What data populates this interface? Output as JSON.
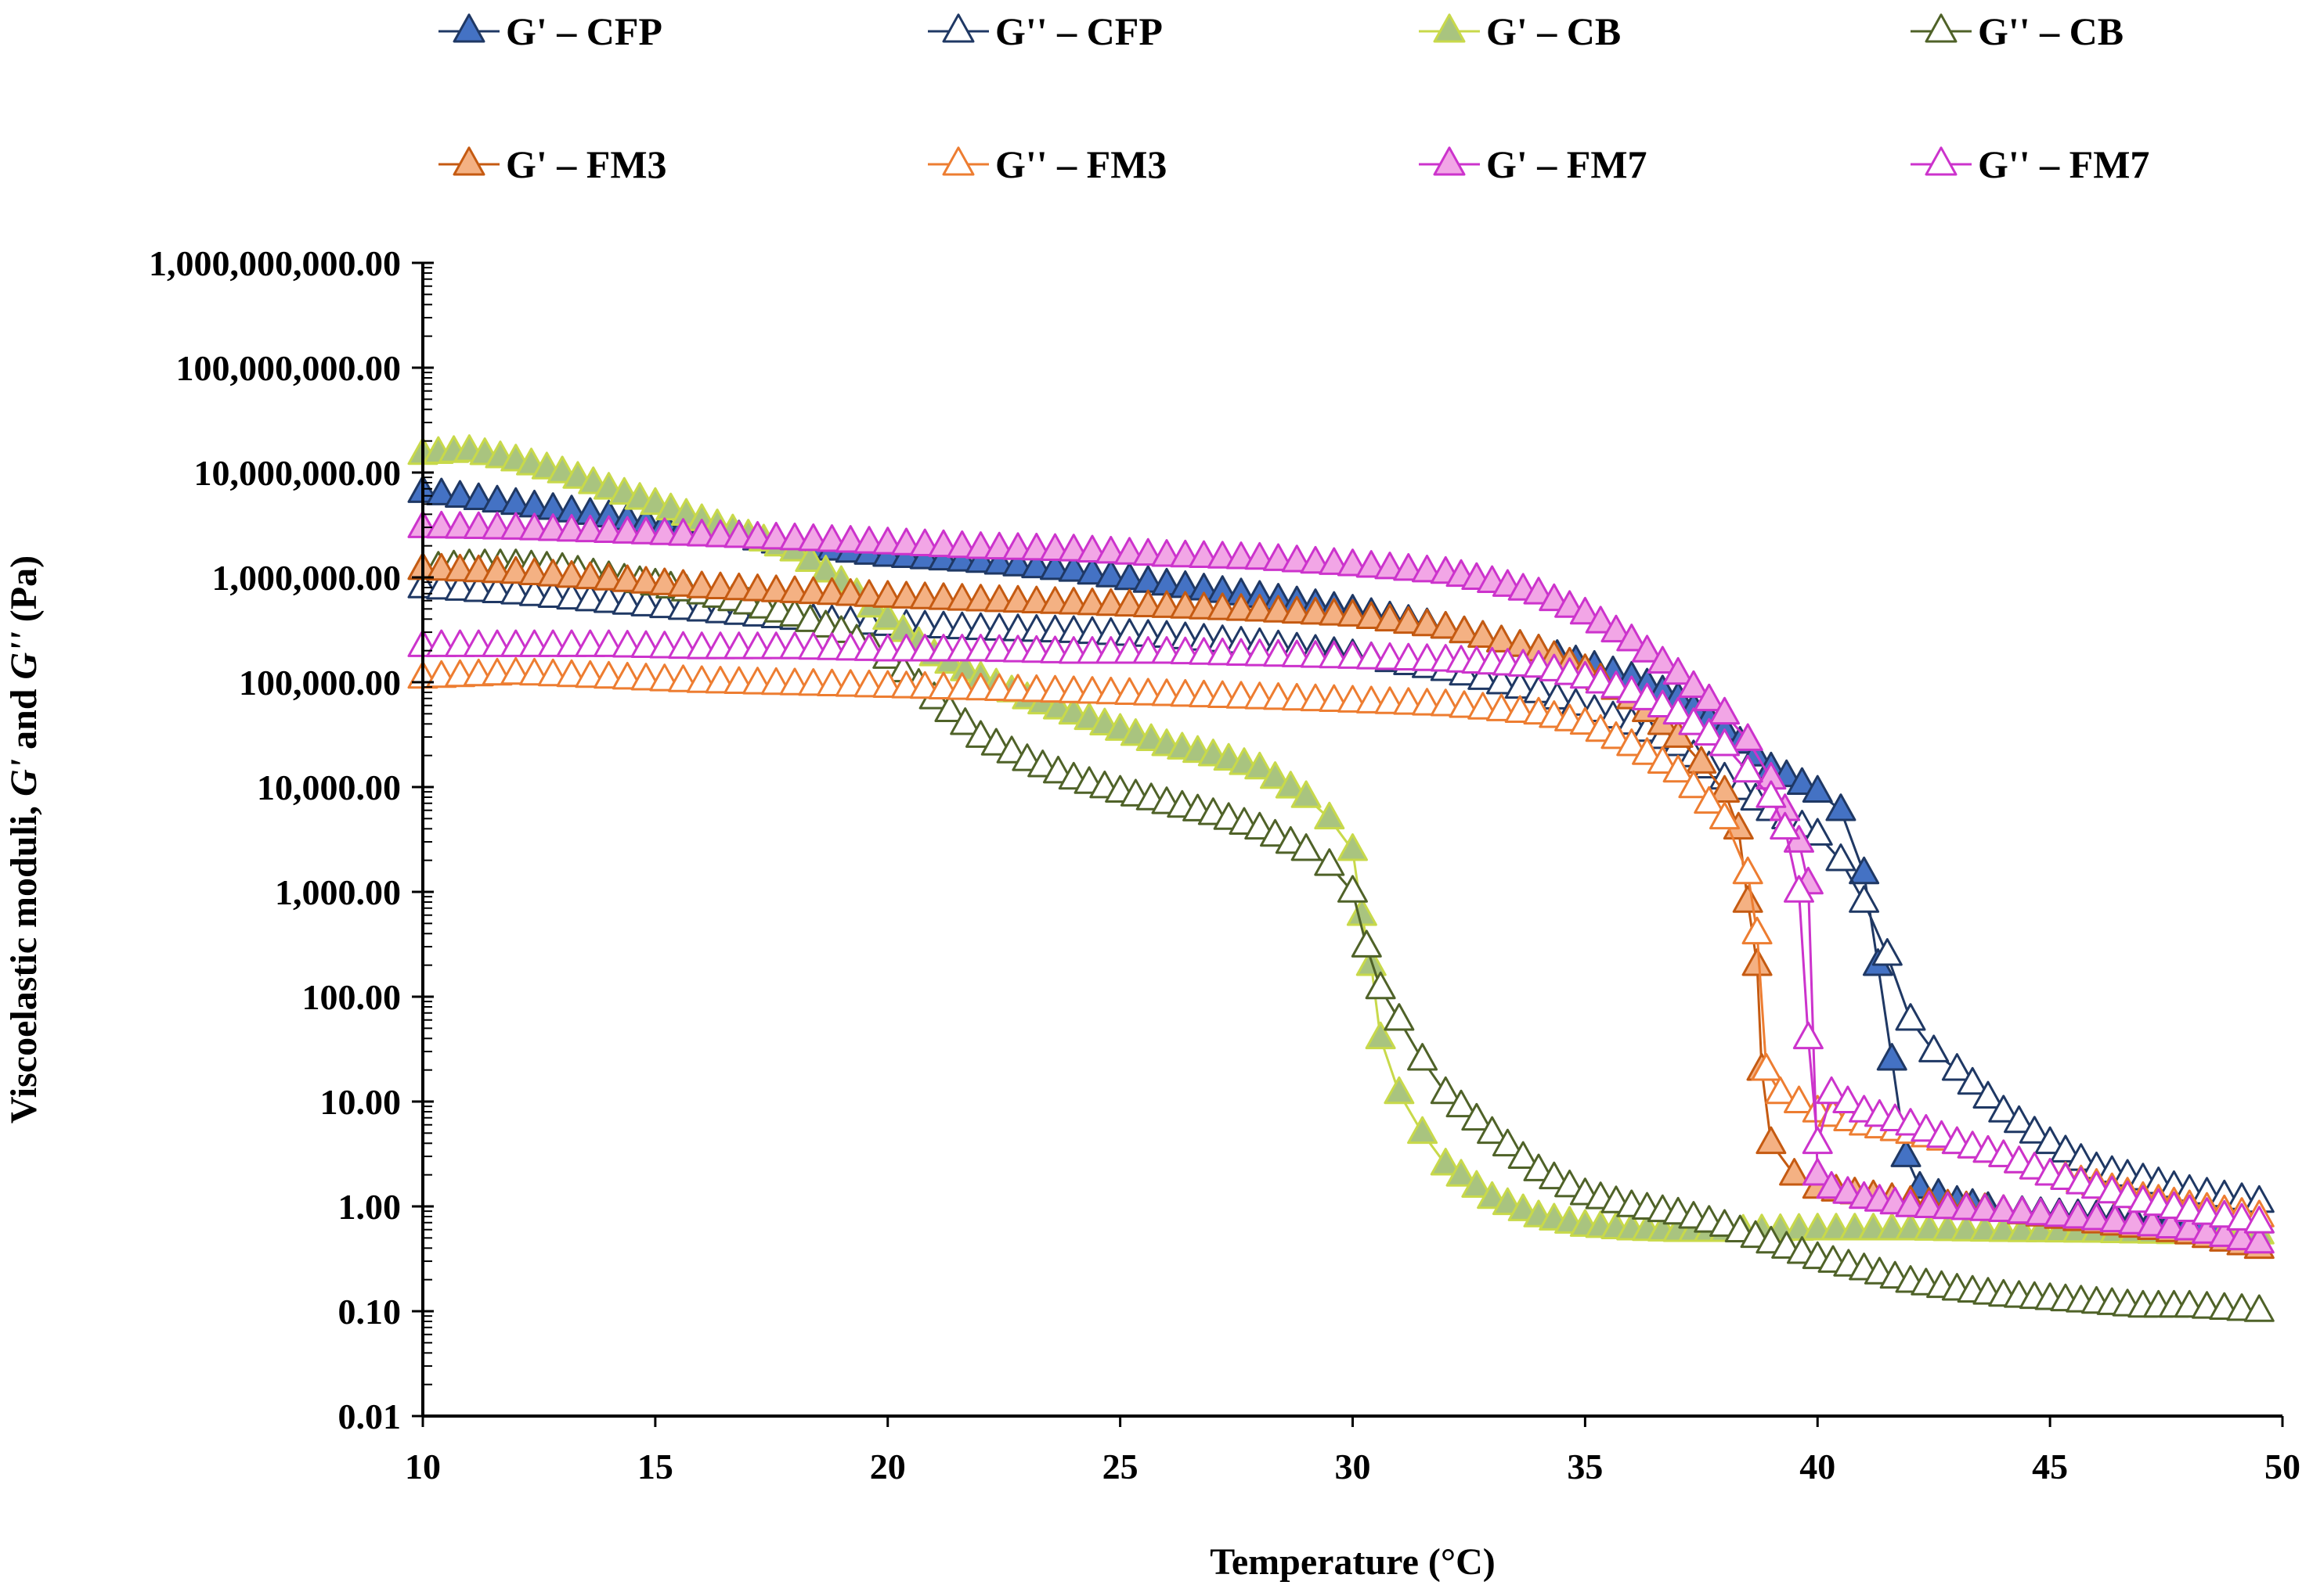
{
  "chart_data": {
    "type": "line",
    "xlabel": "Temperature (°C)",
    "ylabel": {
      "prefix": "Viscoelastic moduli, ",
      "g1": "G'",
      "mid": " and ",
      "g2": "G''",
      "suffix": " (Pa)"
    },
    "xlim": [
      10,
      50
    ],
    "ylim": [
      0.01,
      1000000000
    ],
    "yscale": "log",
    "x_ticks": [
      "10",
      "15",
      "20",
      "25",
      "30",
      "35",
      "40",
      "45",
      "50"
    ],
    "y_ticks": [
      "1,000,000,000.00",
      "100,000,000.00",
      "10,000,000.00",
      "1,000,000.00",
      "100,000.00",
      "10,000.00",
      "1,000.00",
      "100.00",
      "10.00",
      "1.00",
      "0.10",
      "0.01"
    ],
    "grid": false,
    "legend_position": "top",
    "series": [
      {
        "name": "G' – CFP",
        "color": "#1f3864",
        "fill": "#4472c4",
        "filled": true,
        "points": [
          [
            10,
            6500000
          ],
          [
            12,
            5000000
          ],
          [
            14,
            3800000
          ],
          [
            16,
            2800000
          ],
          [
            18,
            2000000
          ],
          [
            20,
            1600000
          ],
          [
            22,
            1400000
          ],
          [
            24,
            1150000
          ],
          [
            26,
            850000
          ],
          [
            28,
            650000
          ],
          [
            30,
            480000
          ],
          [
            32,
            330000
          ],
          [
            34,
            200000
          ],
          [
            36,
            110000
          ],
          [
            37,
            70000
          ],
          [
            38,
            35000
          ],
          [
            39,
            15000
          ],
          [
            40,
            9000
          ],
          [
            40.5,
            6000
          ],
          [
            41,
            1500
          ],
          [
            41.3,
            200
          ],
          [
            41.6,
            25
          ],
          [
            41.9,
            3
          ],
          [
            42.2,
            1.5
          ],
          [
            43,
            1.1
          ],
          [
            44,
            0.9
          ],
          [
            46,
            0.8
          ],
          [
            48,
            0.7
          ],
          [
            49.5,
            0.7
          ]
        ]
      },
      {
        "name": "G'' – CFP",
        "color": "#1f3864",
        "fill": "#ffffff",
        "filled": false,
        "points": [
          [
            10,
            800000
          ],
          [
            12,
            700000
          ],
          [
            14,
            580000
          ],
          [
            16,
            480000
          ],
          [
            18,
            400000
          ],
          [
            20,
            350000
          ],
          [
            22,
            320000
          ],
          [
            24,
            300000
          ],
          [
            26,
            270000
          ],
          [
            28,
            230000
          ],
          [
            30,
            180000
          ],
          [
            32,
            130000
          ],
          [
            34,
            80000
          ],
          [
            36,
            40000
          ],
          [
            37,
            25000
          ],
          [
            38,
            12000
          ],
          [
            39,
            6000
          ],
          [
            40,
            3500
          ],
          [
            40.5,
            2000
          ],
          [
            41,
            800
          ],
          [
            41.5,
            250
          ],
          [
            42,
            60
          ],
          [
            42.5,
            30
          ],
          [
            43,
            20
          ],
          [
            44,
            8
          ],
          [
            45,
            4
          ],
          [
            46,
            2.3
          ],
          [
            47,
            1.8
          ],
          [
            48,
            1.4
          ],
          [
            49.5,
            1.1
          ]
        ]
      },
      {
        "name": "G' – CB",
        "color": "#c8d94a",
        "fill": "#a9c47f",
        "filled": true,
        "points": [
          [
            10,
            15000000
          ],
          [
            11,
            16000000
          ],
          [
            12,
            13000000
          ],
          [
            13,
            10000000
          ],
          [
            14,
            7000000
          ],
          [
            15,
            5000000
          ],
          [
            16,
            3500000
          ],
          [
            17,
            2500000
          ],
          [
            18,
            1800000
          ],
          [
            19,
            900000
          ],
          [
            20,
            400000
          ],
          [
            21,
            180000
          ],
          [
            22,
            110000
          ],
          [
            23,
            70000
          ],
          [
            24,
            50000
          ],
          [
            25,
            35000
          ],
          [
            26,
            25000
          ],
          [
            27,
            20000
          ],
          [
            28,
            15000
          ],
          [
            29,
            8000
          ],
          [
            29.5,
            5000
          ],
          [
            30,
            2500
          ],
          [
            30.2,
            600
          ],
          [
            30.4,
            200
          ],
          [
            30.6,
            40
          ],
          [
            31,
            12
          ],
          [
            31.5,
            5
          ],
          [
            32,
            2.5
          ],
          [
            33,
            1.2
          ],
          [
            34,
            0.8
          ],
          [
            35,
            0.65
          ],
          [
            36,
            0.6
          ],
          [
            37,
            0.58
          ],
          [
            38,
            0.58
          ],
          [
            40,
            0.6
          ],
          [
            42,
            0.6
          ],
          [
            44,
            0.58
          ],
          [
            46,
            0.57
          ],
          [
            48,
            0.55
          ],
          [
            49.5,
            0.55
          ]
        ]
      },
      {
        "name": "G'' – CB",
        "color": "#4f6228",
        "fill": "#ffffff",
        "filled": false,
        "points": [
          [
            10,
            1200000
          ],
          [
            11,
            1300000
          ],
          [
            12,
            1300000
          ],
          [
            13,
            1200000
          ],
          [
            14,
            1000000
          ],
          [
            15,
            850000
          ],
          [
            16,
            700000
          ],
          [
            17,
            560000
          ],
          [
            18,
            430000
          ],
          [
            19,
            300000
          ],
          [
            20,
            170000
          ],
          [
            21,
            70000
          ],
          [
            22,
            30000
          ],
          [
            23,
            18000
          ],
          [
            24,
            12000
          ],
          [
            25,
            9000
          ],
          [
            26,
            7000
          ],
          [
            27,
            5500
          ],
          [
            28,
            4000
          ],
          [
            29,
            2500
          ],
          [
            29.5,
            1800
          ],
          [
            30,
            1000
          ],
          [
            30.3,
            300
          ],
          [
            30.6,
            120
          ],
          [
            31,
            60
          ],
          [
            31.5,
            25
          ],
          [
            32,
            12
          ],
          [
            33,
            5
          ],
          [
            34,
            2.2
          ],
          [
            35,
            1.3
          ],
          [
            36,
            1
          ],
          [
            37,
            0.85
          ],
          [
            38,
            0.65
          ],
          [
            39,
            0.45
          ],
          [
            40,
            0.32
          ],
          [
            41,
            0.25
          ],
          [
            42,
            0.19
          ],
          [
            43,
            0.16
          ],
          [
            44,
            0.14
          ],
          [
            45,
            0.13
          ],
          [
            46,
            0.12
          ],
          [
            47,
            0.11
          ],
          [
            48,
            0.11
          ],
          [
            49.5,
            0.1
          ]
        ]
      },
      {
        "name": "G' – FM3",
        "color": "#c55a11",
        "fill": "#f4b183",
        "filled": true,
        "points": [
          [
            10,
            1200000
          ],
          [
            12,
            1100000
          ],
          [
            14,
            950000
          ],
          [
            16,
            800000
          ],
          [
            18,
            720000
          ],
          [
            20,
            650000
          ],
          [
            22,
            600000
          ],
          [
            24,
            560000
          ],
          [
            26,
            520000
          ],
          [
            28,
            480000
          ],
          [
            30,
            430000
          ],
          [
            32,
            330000
          ],
          [
            34,
            200000
          ],
          [
            35,
            130000
          ],
          [
            36,
            70000
          ],
          [
            37,
            30000
          ],
          [
            37.5,
            17000
          ],
          [
            38,
            9000
          ],
          [
            38.3,
            4000
          ],
          [
            38.5,
            800
          ],
          [
            38.7,
            200
          ],
          [
            38.8,
            20
          ],
          [
            39,
            4
          ],
          [
            39.5,
            2
          ],
          [
            40,
            1.5
          ],
          [
            42,
            1.1
          ],
          [
            44,
            0.9
          ],
          [
            46,
            0.7
          ],
          [
            48,
            0.55
          ],
          [
            49.5,
            0.4
          ]
        ]
      },
      {
        "name": "G'' – FM3",
        "color": "#ed7d31",
        "fill": "#ffffff",
        "filled": false,
        "points": [
          [
            10,
            110000
          ],
          [
            12,
            120000
          ],
          [
            14,
            110000
          ],
          [
            16,
            100000
          ],
          [
            18,
            95000
          ],
          [
            20,
            90000
          ],
          [
            22,
            85000
          ],
          [
            24,
            80000
          ],
          [
            26,
            75000
          ],
          [
            28,
            70000
          ],
          [
            30,
            65000
          ],
          [
            32,
            60000
          ],
          [
            34,
            50000
          ],
          [
            35,
            40000
          ],
          [
            36,
            25000
          ],
          [
            37,
            14000
          ],
          [
            38,
            5000
          ],
          [
            38.5,
            1500
          ],
          [
            38.7,
            400
          ],
          [
            38.9,
            20
          ],
          [
            39.2,
            12
          ],
          [
            40,
            8
          ],
          [
            41,
            6
          ],
          [
            42,
            5
          ],
          [
            43,
            4
          ],
          [
            44,
            3
          ],
          [
            45,
            2
          ],
          [
            46,
            1.6
          ],
          [
            47,
            1.2
          ],
          [
            48,
            1
          ],
          [
            49.5,
            0.8
          ]
        ]
      },
      {
        "name": "G' – FM7",
        "color": "#cc33cc",
        "fill": "#f2a6e6",
        "filled": true,
        "points": [
          [
            10,
            3000000
          ],
          [
            12,
            2900000
          ],
          [
            14,
            2700000
          ],
          [
            16,
            2500000
          ],
          [
            18,
            2300000
          ],
          [
            20,
            2100000
          ],
          [
            22,
            1900000
          ],
          [
            24,
            1800000
          ],
          [
            26,
            1600000
          ],
          [
            28,
            1500000
          ],
          [
            30,
            1300000
          ],
          [
            32,
            1100000
          ],
          [
            33,
            900000
          ],
          [
            34,
            700000
          ],
          [
            35,
            450000
          ],
          [
            36,
            250000
          ],
          [
            37,
            120000
          ],
          [
            38,
            50000
          ],
          [
            38.5,
            28000
          ],
          [
            39,
            12000
          ],
          [
            39.3,
            6000
          ],
          [
            39.6,
            3000
          ],
          [
            39.8,
            1200
          ],
          [
            40,
            2
          ],
          [
            40.3,
            1.5
          ],
          [
            41,
            1.2
          ],
          [
            42,
            1
          ],
          [
            44,
            0.9
          ],
          [
            46,
            0.75
          ],
          [
            48,
            0.6
          ],
          [
            49.5,
            0.45
          ]
        ]
      },
      {
        "name": "G'' – FM7",
        "color": "#cc33cc",
        "fill": "#ffffff",
        "filled": false,
        "points": [
          [
            10,
            220000
          ],
          [
            12,
            220000
          ],
          [
            14,
            220000
          ],
          [
            16,
            210000
          ],
          [
            18,
            210000
          ],
          [
            20,
            200000
          ],
          [
            22,
            200000
          ],
          [
            24,
            190000
          ],
          [
            26,
            190000
          ],
          [
            28,
            180000
          ],
          [
            30,
            170000
          ],
          [
            32,
            160000
          ],
          [
            33,
            150000
          ],
          [
            34,
            140000
          ],
          [
            35,
            110000
          ],
          [
            36,
            80000
          ],
          [
            37,
            50000
          ],
          [
            38,
            25000
          ],
          [
            38.5,
            14000
          ],
          [
            39,
            8000
          ],
          [
            39.3,
            4000
          ],
          [
            39.6,
            1000
          ],
          [
            39.8,
            40
          ],
          [
            40,
            4
          ],
          [
            40.3,
            12
          ],
          [
            41,
            8
          ],
          [
            42,
            6
          ],
          [
            43,
            4
          ],
          [
            44,
            3
          ],
          [
            45,
            2
          ],
          [
            46,
            1.5
          ],
          [
            47,
            1.1
          ],
          [
            48,
            0.9
          ],
          [
            49.5,
            0.7
          ]
        ]
      }
    ]
  }
}
